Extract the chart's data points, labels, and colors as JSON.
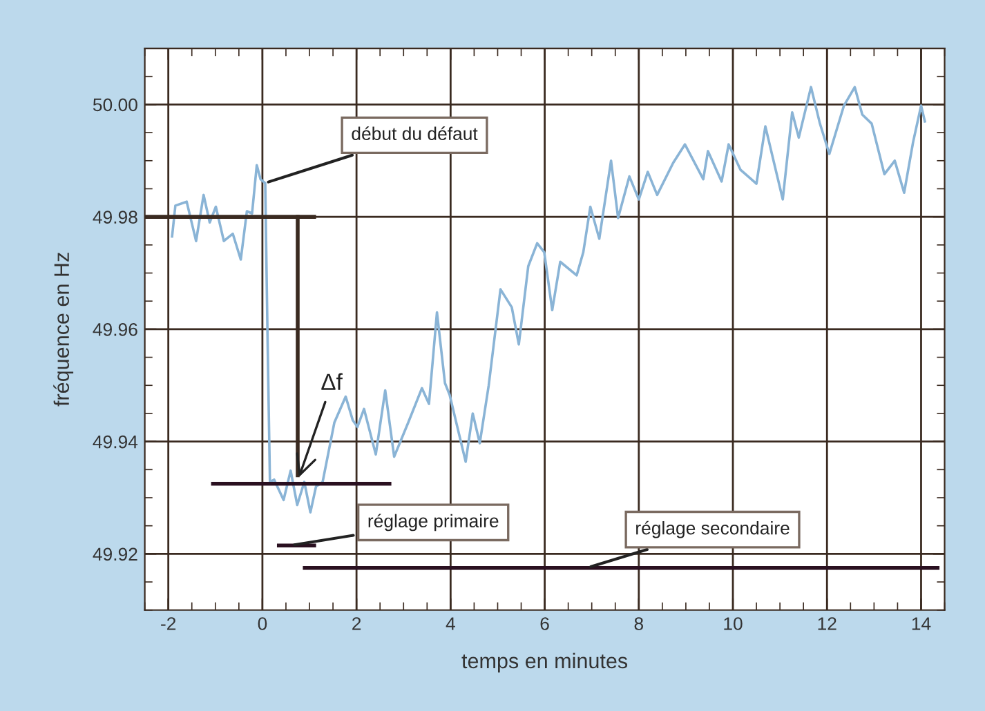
{
  "chart_data": {
    "type": "line",
    "xlabel": "temps en minutes",
    "ylabel": "fréquence en Hz",
    "xlim": [
      -2.5,
      14.5
    ],
    "ylim": [
      49.91,
      50.01
    ],
    "xticks": [
      -2,
      0,
      2,
      4,
      6,
      8,
      10,
      12,
      14
    ],
    "yticks": [
      {
        "value": 49.92,
        "label": "49.92"
      },
      {
        "value": 49.94,
        "label": "49.94"
      },
      {
        "value": 49.96,
        "label": "49.96"
      },
      {
        "value": 49.98,
        "label": "49.98"
      },
      {
        "value": 50.0,
        "label": "50.00"
      }
    ],
    "grid": true,
    "legend": false,
    "marker": "none",
    "line_style": "solid",
    "series": [
      {
        "color": "#8ab4d6",
        "x": [
          -1.92,
          -1.85,
          -1.61,
          -1.41,
          -1.25,
          -1.12,
          -0.99,
          -0.82,
          -0.63,
          -0.46,
          -0.33,
          -0.22,
          -0.12,
          -0.04,
          0.06,
          0.11,
          0.16,
          0.25,
          0.45,
          0.6,
          0.74,
          0.89,
          1.02,
          1.14,
          1.28,
          1.53,
          1.77,
          1.92,
          2.02,
          2.16,
          2.41,
          2.61,
          2.8,
          3.1,
          3.39,
          3.54,
          3.71,
          3.88,
          3.98,
          4.32,
          4.47,
          4.62,
          4.81,
          5.06,
          5.3,
          5.45,
          5.65,
          5.84,
          5.99,
          6.16,
          6.33,
          6.68,
          6.82,
          6.97,
          7.16,
          7.41,
          7.56,
          7.8,
          8.0,
          8.19,
          8.39,
          8.73,
          8.98,
          9.37,
          9.47,
          9.76,
          9.91,
          10.16,
          10.5,
          10.69,
          11.06,
          11.26,
          11.4,
          11.66,
          11.85,
          12.05,
          12.36,
          12.59,
          12.75,
          12.95,
          13.22,
          13.44,
          13.64,
          13.83,
          14.0,
          14.08
        ],
        "values": [
          49.9765,
          49.982,
          49.9827,
          49.9757,
          49.9839,
          49.979,
          49.9818,
          49.9757,
          49.977,
          49.9724,
          49.981,
          49.9806,
          49.9892,
          49.9867,
          49.986,
          49.958,
          49.9328,
          49.9332,
          49.9296,
          49.9348,
          49.9287,
          49.9328,
          49.9274,
          49.932,
          49.9328,
          49.9434,
          49.948,
          49.9438,
          49.9426,
          49.9458,
          49.9377,
          49.9491,
          49.9373,
          49.9434,
          49.9495,
          49.9467,
          49.963,
          49.9504,
          49.9483,
          49.9364,
          49.945,
          49.9397,
          49.95,
          49.9671,
          49.9639,
          49.9573,
          49.9712,
          49.9753,
          49.9737,
          49.9634,
          49.972,
          49.9696,
          49.9737,
          49.9818,
          49.9761,
          49.99,
          49.9798,
          49.9872,
          49.9831,
          49.988,
          49.9839,
          49.9896,
          49.9929,
          49.9867,
          49.9917,
          49.9863,
          49.9929,
          49.9884,
          49.9859,
          49.9961,
          49.9831,
          49.9986,
          49.9941,
          50.0031,
          49.9966,
          49.9912,
          49.9998,
          50.0031,
          49.9982,
          49.9966,
          49.9876,
          49.99,
          49.9843,
          49.9933,
          49.9998,
          49.997
        ]
      },
      {
        "color": "#3a2a20",
        "x": [
          -2.5,
          1.1
        ],
        "values": [
          49.98,
          49.98
        ]
      },
      {
        "color": "#3a2a20",
        "x": [
          0.75,
          0.75
        ],
        "values": [
          49.98,
          49.934
        ]
      },
      {
        "color": "#2a1020",
        "x": [
          -1.05,
          2.7
        ],
        "values": [
          49.9325,
          49.9325
        ]
      },
      {
        "color": "#2a1020",
        "x": [
          0.35,
          1.1
        ],
        "values": [
          49.9215,
          49.9215
        ]
      },
      {
        "color": "#2a1020",
        "x": [
          0.9,
          14.35
        ],
        "values": [
          49.9175,
          49.9175
        ]
      }
    ],
    "annotations": [
      {
        "text": "début du défaut",
        "x": 0.05,
        "y": 49.986
      },
      {
        "text": "Δf",
        "x": 0.75,
        "y": 49.933
      },
      {
        "text": "réglage primaire",
        "x": 0.6,
        "y": 49.9215
      },
      {
        "text": "réglage secondaire",
        "x": 6.9,
        "y": 49.9175
      }
    ]
  }
}
